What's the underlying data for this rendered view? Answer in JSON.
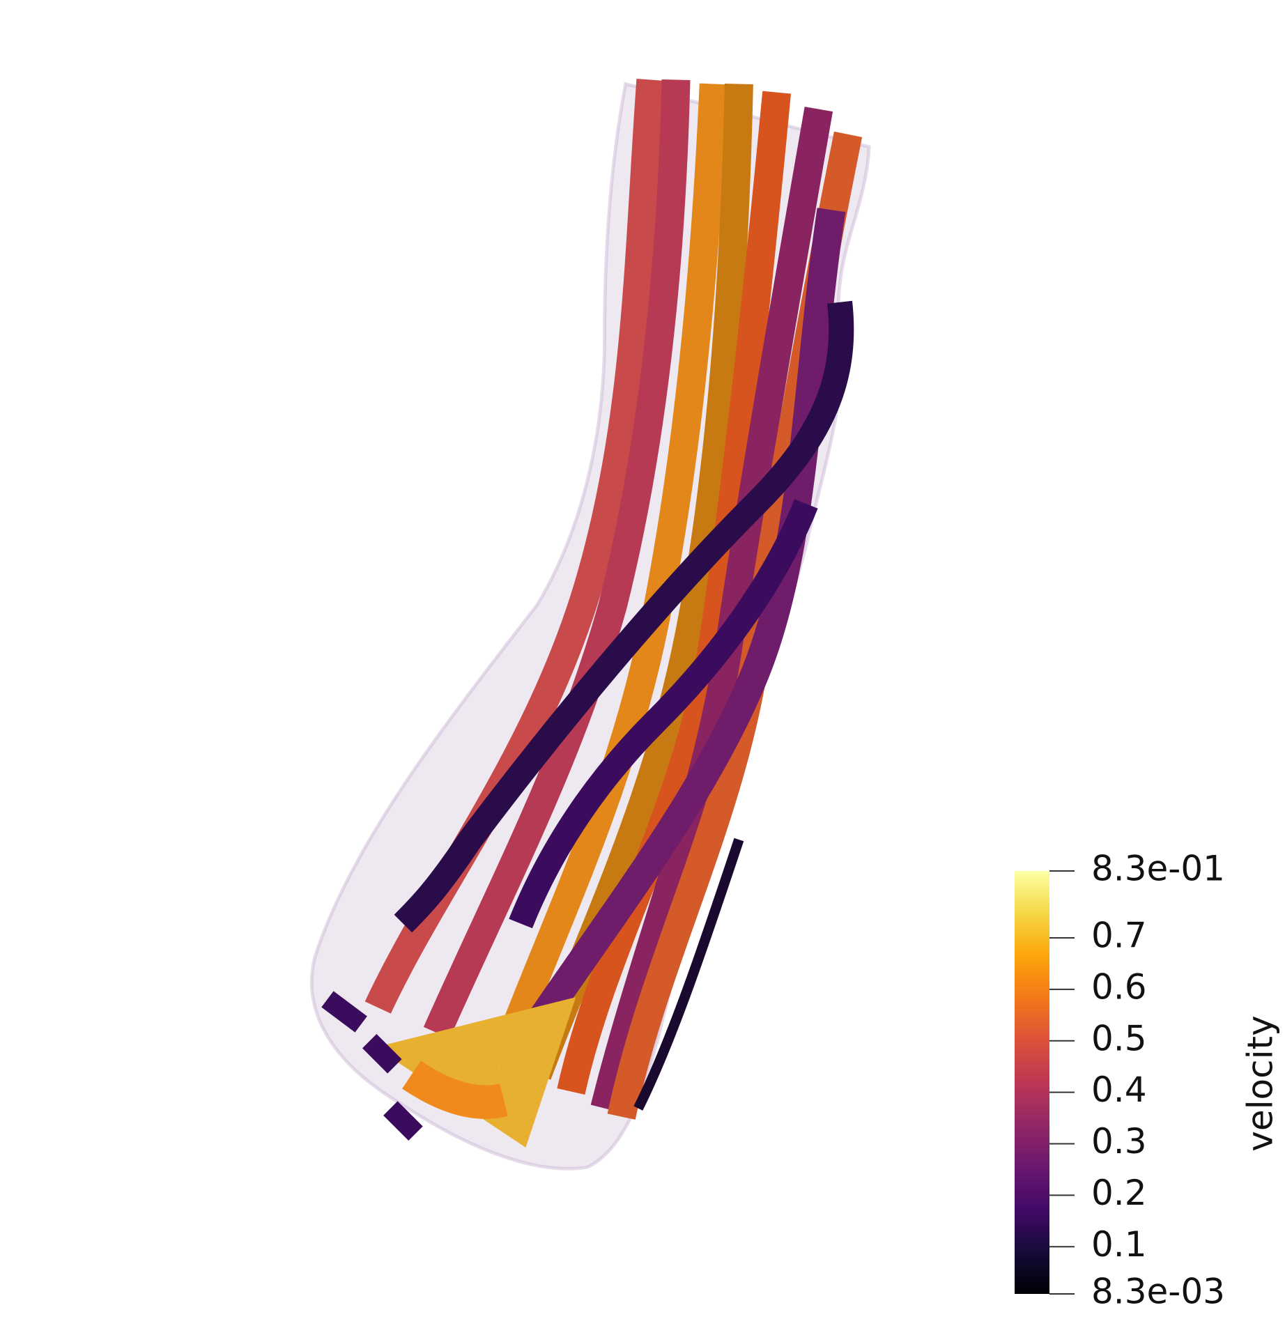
{
  "colorbar": {
    "title": "velocity",
    "range": [
      0.0083,
      0.83
    ],
    "ticks": [
      {
        "value": 0.83,
        "label": "8.3e-01"
      },
      0.7,
      0.6,
      0.5,
      0.4,
      0.3,
      0.2,
      0.1,
      {
        "value": 0.0083,
        "label": "8.3e-03"
      }
    ],
    "colormap": [
      "#000004",
      "#160b39",
      "#420a68",
      "#6a176e",
      "#932667",
      "#bc3754",
      "#dd513a",
      "#f37819",
      "#fca50a",
      "#f6d746",
      "#fcffa4"
    ]
  }
}
